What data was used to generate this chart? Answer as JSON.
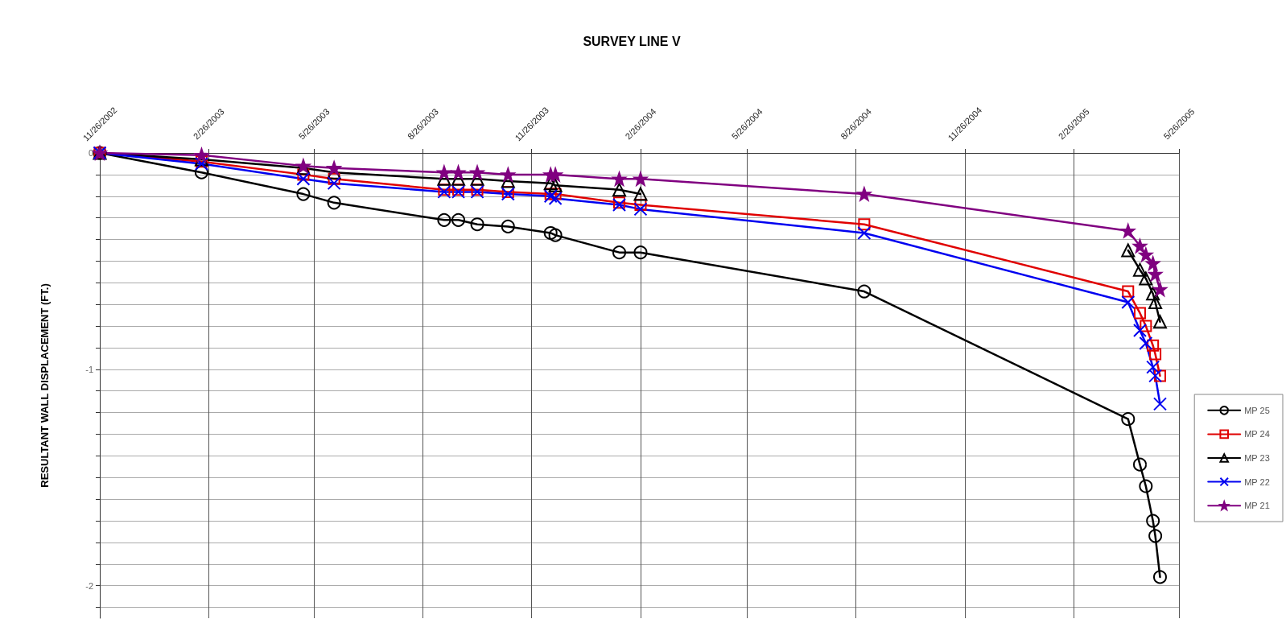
{
  "chart_data": {
    "type": "line",
    "title": "SURVEY LINE V",
    "ylabel": "RESULTANT WALL DISPLACEMENT (FT.)",
    "x": [
      "2002-11-26",
      "2003-02-20",
      "2003-05-17",
      "2003-06-12",
      "2003-09-13",
      "2003-09-25",
      "2003-10-11",
      "2003-11-06",
      "2003-12-12",
      "2003-12-16",
      "2004-02-08",
      "2004-02-26",
      "2004-09-02",
      "2005-04-13",
      "2005-04-23",
      "2005-04-28",
      "2005-05-04",
      "2005-05-06",
      "2005-05-10"
    ],
    "series": [
      {
        "name": "MP 25",
        "color": "#000000",
        "marker": "circle",
        "values": [
          0,
          -0.09,
          -0.19,
          -0.23,
          -0.31,
          -0.31,
          -0.33,
          -0.34,
          -0.37,
          -0.38,
          -0.46,
          -0.46,
          -0.64,
          -1.23,
          -1.44,
          -1.54,
          -1.7,
          -1.77,
          -1.96
        ]
      },
      {
        "name": "MP 24",
        "color": "#e00000",
        "marker": "square",
        "values": [
          0,
          -0.04,
          -0.1,
          -0.12,
          -0.17,
          -0.17,
          -0.17,
          -0.18,
          -0.19,
          -0.19,
          -0.23,
          -0.24,
          -0.33,
          -0.64,
          -0.74,
          -0.8,
          -0.89,
          -0.93,
          -1.03
        ]
      },
      {
        "name": "MP 23",
        "color": "#000000",
        "marker": "triangle",
        "values": [
          0,
          -0.03,
          -0.07,
          -0.09,
          -0.12,
          -0.12,
          -0.12,
          -0.13,
          -0.14,
          -0.15,
          -0.17,
          -0.19,
          null,
          -0.45,
          -0.54,
          -0.58,
          -0.65,
          -0.69,
          -0.78
        ]
      },
      {
        "name": "MP 22",
        "color": "#0000f0",
        "marker": "cross",
        "values": [
          0,
          -0.05,
          -0.12,
          -0.14,
          -0.18,
          -0.18,
          -0.18,
          -0.19,
          -0.2,
          -0.21,
          -0.24,
          -0.26,
          -0.37,
          -0.69,
          -0.82,
          -0.88,
          -0.99,
          -1.03,
          -1.16
        ]
      },
      {
        "name": "MP 21",
        "color": "#800080",
        "marker": "star",
        "values": [
          0,
          -0.01,
          -0.06,
          -0.07,
          -0.09,
          -0.09,
          -0.09,
          -0.1,
          -0.1,
          -0.1,
          -0.12,
          -0.12,
          -0.19,
          -0.36,
          -0.43,
          -0.47,
          -0.51,
          -0.56,
          -0.63
        ]
      }
    ],
    "xlim": [
      "2002-11-26",
      "2005-05-26"
    ],
    "xticks": [
      {
        "value": "2002-11-26",
        "label": "11/26/2002"
      },
      {
        "value": "2003-02-26",
        "label": "2/26/2003"
      },
      {
        "value": "2003-05-26",
        "label": "5/26/2003"
      },
      {
        "value": "2003-08-26",
        "label": "8/26/2003"
      },
      {
        "value": "2003-11-26",
        "label": "11/26/2003"
      },
      {
        "value": "2004-02-26",
        "label": "2/26/2004"
      },
      {
        "value": "2004-05-26",
        "label": "5/26/2004"
      },
      {
        "value": "2004-08-26",
        "label": "8/26/2004"
      },
      {
        "value": "2004-11-26",
        "label": "11/26/2004"
      },
      {
        "value": "2005-02-26",
        "label": "2/26/2005"
      },
      {
        "value": "2005-05-26",
        "label": "5/26/2005"
      }
    ],
    "ylim": [
      -2.15,
      0
    ],
    "yticks": [
      0,
      {
        "value": -0.1,
        "label": null
      },
      {
        "value": -0.2,
        "label": null
      },
      {
        "value": -0.3,
        "label": null
      },
      {
        "value": -0.4,
        "label": null
      },
      {
        "value": -0.5,
        "label": null
      },
      {
        "value": -0.6,
        "label": null
      },
      {
        "value": -0.7,
        "label": null
      },
      {
        "value": -0.8,
        "label": null
      },
      {
        "value": -0.9,
        "label": null
      },
      -1,
      {
        "value": -1.1,
        "label": null
      },
      {
        "value": -1.2,
        "label": null
      },
      {
        "value": -1.3,
        "label": null
      },
      {
        "value": -1.4,
        "label": null
      },
      {
        "value": -1.5,
        "label": null
      },
      {
        "value": -1.6,
        "label": null
      },
      {
        "value": -1.7,
        "label": null
      },
      {
        "value": -1.8,
        "label": null
      },
      {
        "value": -1.9,
        "label": null
      },
      -2,
      {
        "value": -2.1,
        "label": null
      }
    ],
    "grid": true,
    "legend": "right",
    "line_style": "solid"
  }
}
